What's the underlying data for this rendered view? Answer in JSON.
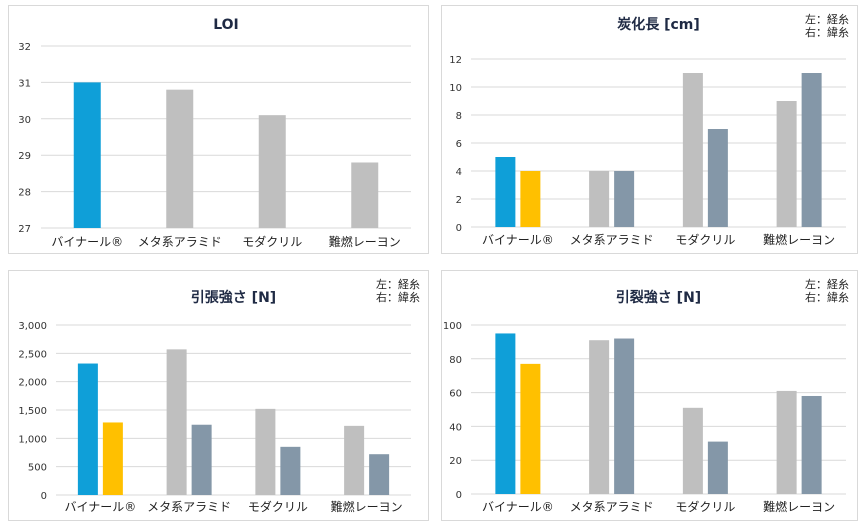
{
  "colors": {
    "vinal_left": "#0f9fd8",
    "vinal_right": "#ffc000",
    "other_left": "#bfbfbf",
    "other_right": "#8497a8",
    "grid": "#d9d9d9"
  },
  "chart_data": [
    {
      "type": "bar",
      "title": "LOI",
      "note": [],
      "categories": [
        "バイナール®",
        "メタ系アラミド",
        "モダクリル",
        "難燃レーヨン"
      ],
      "series": [
        {
          "name": "LOI",
          "values": [
            31,
            30.8,
            30.1,
            28.8
          ]
        }
      ],
      "ylim": [
        27,
        32
      ],
      "yticks": [
        "27",
        "28",
        "29",
        "30",
        "31",
        "32"
      ],
      "grid": true
    },
    {
      "type": "bar",
      "title": "炭化長 [cm]",
      "note": [
        "左：経糸",
        "右：緯糸"
      ],
      "categories": [
        "バイナール®",
        "メタ系アラミド",
        "モダクリル",
        "難燃レーヨン"
      ],
      "series": [
        {
          "name": "経糸",
          "values": [
            5,
            4,
            11,
            9
          ]
        },
        {
          "name": "緯糸",
          "values": [
            4,
            4,
            7,
            11
          ]
        }
      ],
      "ylim": [
        0,
        12
      ],
      "yticks": [
        "0",
        "2",
        "4",
        "6",
        "8",
        "10",
        "12"
      ],
      "grid": true
    },
    {
      "type": "bar",
      "title": "引張強さ [N]",
      "note": [
        "左：経糸",
        "右：緯糸"
      ],
      "categories": [
        "バイナール®",
        "メタ系アラミド",
        "モダクリル",
        "難燃レーヨン"
      ],
      "series": [
        {
          "name": "経糸",
          "values": [
            2320,
            2570,
            1520,
            1220
          ]
        },
        {
          "name": "緯糸",
          "values": [
            1280,
            1240,
            850,
            720
          ]
        }
      ],
      "ylim": [
        0,
        3000
      ],
      "yticks": [
        "0",
        "500",
        "1,000",
        "1,500",
        "2,000",
        "2,500",
        "3,000"
      ],
      "grid": true
    },
    {
      "type": "bar",
      "title": "引裂強さ [N]",
      "note": [
        "左：経糸",
        "右：緯糸"
      ],
      "categories": [
        "バイナール®",
        "メタ系アラミド",
        "モダクリル",
        "難燃レーヨン"
      ],
      "series": [
        {
          "name": "経糸",
          "values": [
            95,
            91,
            51,
            61
          ]
        },
        {
          "name": "緯糸",
          "values": [
            77,
            92,
            31,
            58
          ]
        }
      ],
      "ylim": [
        0,
        100
      ],
      "yticks": [
        "0",
        "20",
        "40",
        "60",
        "80",
        "100"
      ],
      "grid": true
    }
  ]
}
